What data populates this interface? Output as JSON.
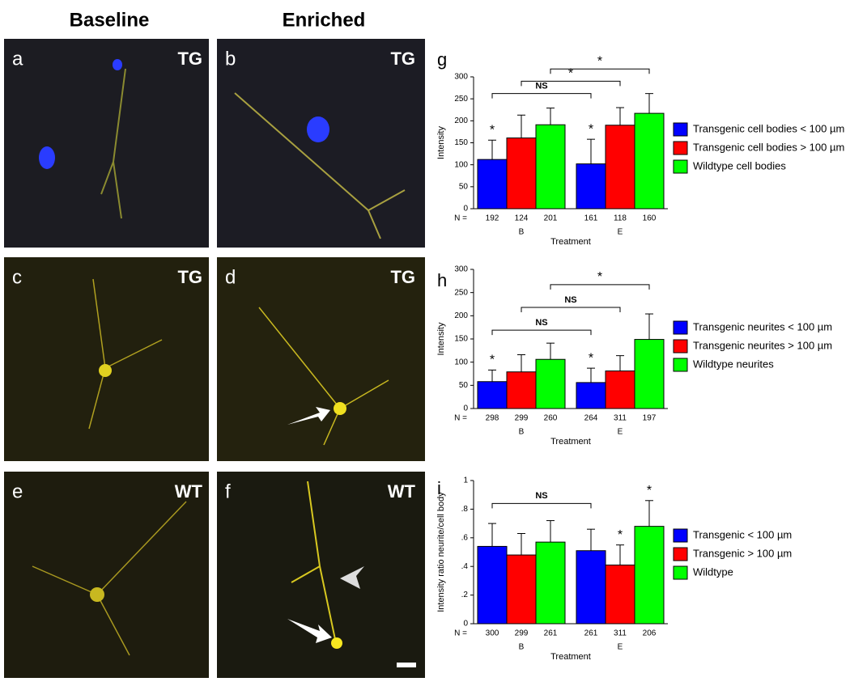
{
  "headers": [
    "Baseline",
    "Enriched"
  ],
  "panels": [
    {
      "letter": "a",
      "tag": "TG"
    },
    {
      "letter": "b",
      "tag": "TG"
    },
    {
      "letter": "c",
      "tag": "TG"
    },
    {
      "letter": "d",
      "tag": "TG"
    },
    {
      "letter": "e",
      "tag": "WT"
    },
    {
      "letter": "f",
      "tag": "WT"
    }
  ],
  "chart_data": [
    {
      "type": "bar",
      "letter": "g",
      "categories": [
        "B",
        "E"
      ],
      "xlabel": "Treatment",
      "ylabel": "Intensity",
      "n_label": "N =",
      "ylim": [
        0,
        300
      ],
      "yticks": [
        0,
        50,
        100,
        150,
        200,
        250,
        300
      ],
      "series": [
        {
          "name": "Transgenic cell bodies < 100 µm",
          "color": "#0000ff",
          "values": [
            112,
            102
          ],
          "error": [
            44,
            56
          ],
          "n": [
            192,
            161
          ],
          "marks": [
            "*",
            "*"
          ]
        },
        {
          "name": "Transgenic cell bodies > 100 µm",
          "color": "#ff0000",
          "values": [
            161,
            190
          ],
          "error": [
            52,
            40
          ],
          "n": [
            124,
            118
          ],
          "marks": [
            null,
            null
          ]
        },
        {
          "name": "Wildtype cell bodies",
          "color": "#00ff00",
          "values": [
            191,
            217
          ],
          "error": [
            38,
            45
          ],
          "n": [
            201,
            160
          ],
          "marks": [
            null,
            null
          ]
        }
      ],
      "bracket_labels": [
        "NS",
        "*",
        "*"
      ]
    },
    {
      "type": "bar",
      "letter": "h",
      "categories": [
        "B",
        "E"
      ],
      "xlabel": "Treatment",
      "ylabel": "Intensity",
      "n_label": "N =",
      "ylim": [
        0,
        300
      ],
      "yticks": [
        0,
        50,
        100,
        150,
        200,
        250,
        300
      ],
      "series": [
        {
          "name": "Transgenic neurites < 100 µm",
          "color": "#0000ff",
          "values": [
            58,
            56
          ],
          "error": [
            25,
            31
          ],
          "n": [
            298,
            264
          ],
          "marks": [
            "*",
            "*"
          ]
        },
        {
          "name": "Transgenic neurites > 100 µm",
          "color": "#ff0000",
          "values": [
            79,
            81
          ],
          "error": [
            37,
            33
          ],
          "n": [
            299,
            311
          ],
          "marks": [
            null,
            null
          ]
        },
        {
          "name": "Wildtype neurites",
          "color": "#00ff00",
          "values": [
            106,
            149
          ],
          "error": [
            35,
            55
          ],
          "n": [
            260,
            197
          ],
          "marks": [
            null,
            null
          ]
        }
      ],
      "bracket_labels": [
        "NS",
        "NS",
        "*"
      ]
    },
    {
      "type": "bar",
      "letter": "i",
      "categories": [
        "B",
        "E"
      ],
      "xlabel": "Treatment",
      "ylabel": "Intensity ratio neurite/cell body",
      "n_label": "N =",
      "ylim": [
        0,
        1
      ],
      "yticks": [
        0,
        {
          "value": 0.2,
          "label": ".2"
        },
        {
          "value": 0.4,
          "label": ".4"
        },
        {
          "value": 0.6,
          "label": ".6"
        },
        {
          "value": 0.8,
          "label": ".8"
        },
        1
      ],
      "series": [
        {
          "name": "Transgenic  < 100 µm",
          "color": "#0000ff",
          "values": [
            0.54,
            0.51
          ],
          "error": [
            0.16,
            0.15
          ],
          "n": [
            300,
            261
          ],
          "marks": [
            null,
            null
          ]
        },
        {
          "name": "Transgenic  > 100 µm",
          "color": "#ff0000",
          "values": [
            0.48,
            0.41
          ],
          "error": [
            0.15,
            0.14
          ],
          "n": [
            299,
            311
          ],
          "marks": [
            null,
            "*"
          ]
        },
        {
          "name": "Wildtype",
          "color": "#00ff00",
          "values": [
            0.57,
            0.68
          ],
          "error": [
            0.15,
            0.18
          ],
          "n": [
            261,
            206
          ],
          "marks": [
            null,
            "*"
          ]
        }
      ],
      "bracket_labels": [
        "NS"
      ]
    }
  ]
}
